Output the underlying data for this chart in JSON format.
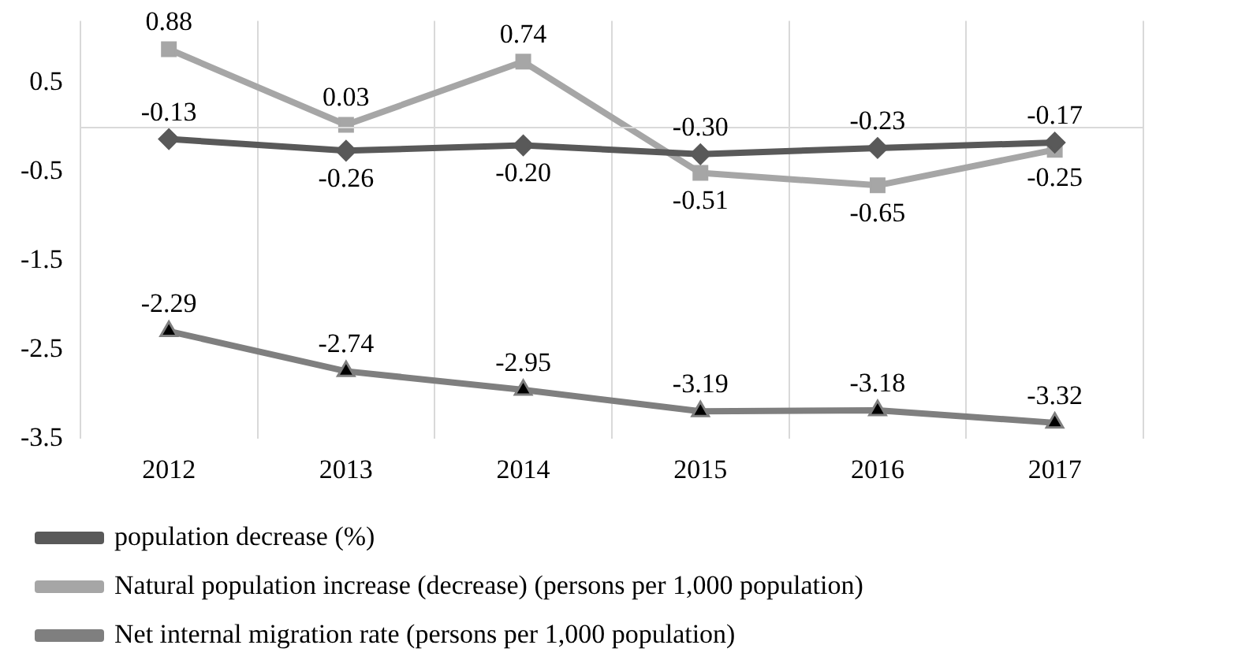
{
  "chart_data": {
    "type": "line",
    "categories": [
      "2012",
      "2013",
      "2014",
      "2015",
      "2016",
      "2017"
    ],
    "series": [
      {
        "name": "population decrease (%)",
        "color": "#595959",
        "marker": "diamond",
        "values": [
          -0.13,
          -0.26,
          -0.2,
          -0.3,
          -0.23,
          -0.17
        ],
        "value_labels": [
          "-0.13",
          "-0.26",
          "-0.20",
          "-0.30",
          "-0.23",
          "-0.17"
        ]
      },
      {
        "name": "Natural population increase (decrease) (persons per 1,000 population)",
        "color": "#a6a6a6",
        "marker": "square",
        "values": [
          0.88,
          0.03,
          0.74,
          -0.51,
          -0.65,
          -0.25
        ],
        "value_labels": [
          "0.88",
          "0.03",
          "0.74",
          "-0.51",
          "-0.65",
          "-0.25"
        ]
      },
      {
        "name": "Net internal migration rate (persons per 1,000 population)",
        "color": "#7f7f7f",
        "marker": "triangle",
        "values": [
          -2.29,
          -2.74,
          -2.95,
          -3.19,
          -3.18,
          -3.32
        ],
        "value_labels": [
          "-2.29",
          "-2.74",
          "-2.95",
          "-3.19",
          "-3.18",
          "-3.32"
        ]
      }
    ],
    "ylim": [
      -3.5,
      1.2
    ],
    "yticks": [
      -3.5,
      -2.5,
      -1.5,
      -0.5,
      0.5
    ],
    "grid": "x",
    "legend": "bottom"
  }
}
